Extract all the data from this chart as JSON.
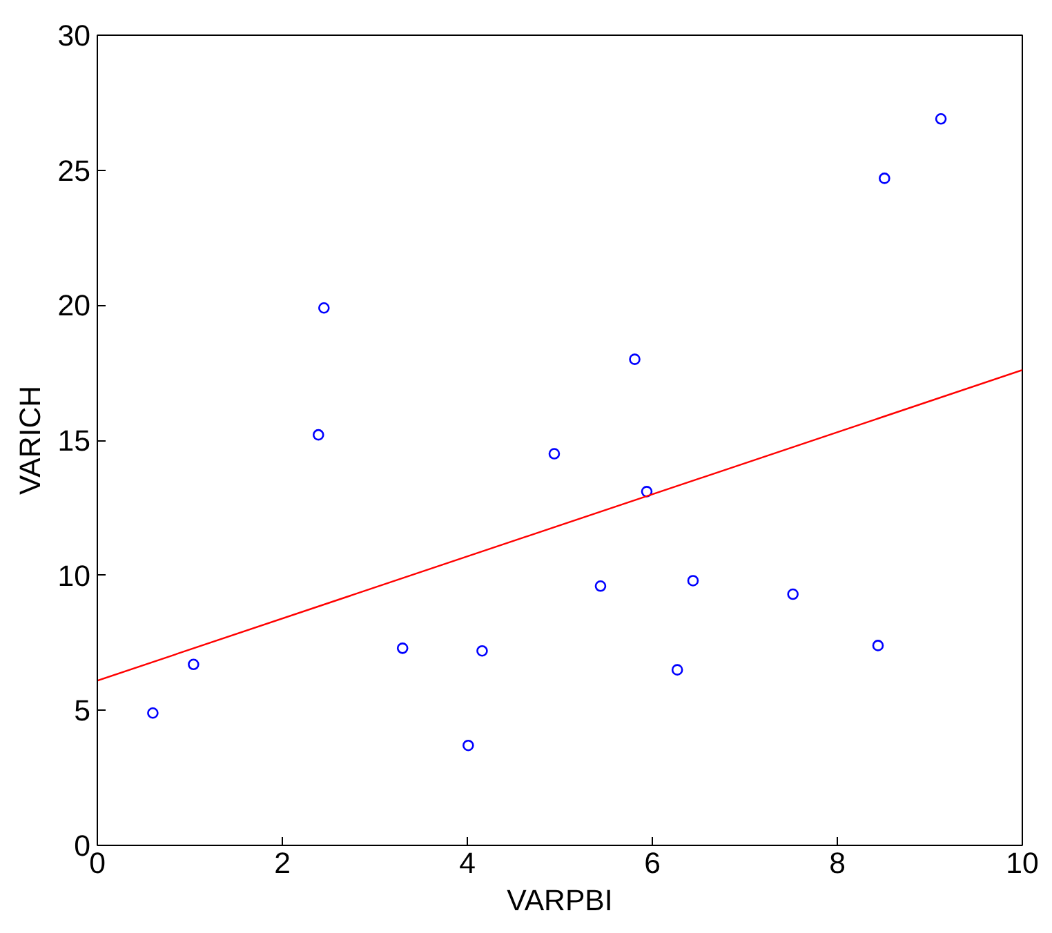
{
  "chart_data": {
    "type": "scatter",
    "xlabel": "VARPBI",
    "ylabel": "VARICH",
    "xlim": [
      0,
      10
    ],
    "ylim": [
      0,
      30
    ],
    "xticks": [
      0,
      2,
      4,
      6,
      8,
      10
    ],
    "yticks": [
      0,
      5,
      10,
      15,
      20,
      25,
      30
    ],
    "grid": false,
    "series": [
      {
        "color": "#0000ff",
        "marker": "circle",
        "x": [
          0.6,
          1.04,
          2.39,
          2.45,
          3.3,
          4.01,
          4.16,
          4.94,
          5.44,
          5.81,
          5.94,
          6.27,
          6.44,
          7.52,
          8.44,
          8.51,
          9.12
        ],
        "values": [
          4.9,
          6.7,
          15.2,
          19.9,
          7.3,
          3.7,
          7.2,
          14.5,
          9.6,
          18.0,
          13.1,
          6.5,
          9.8,
          9.3,
          7.4,
          24.7,
          26.9
        ]
      },
      {
        "type": "line",
        "color": "#ff0000",
        "line_style": "solid",
        "x": [
          0,
          10
        ],
        "values": [
          6.1,
          17.6
        ]
      }
    ]
  }
}
